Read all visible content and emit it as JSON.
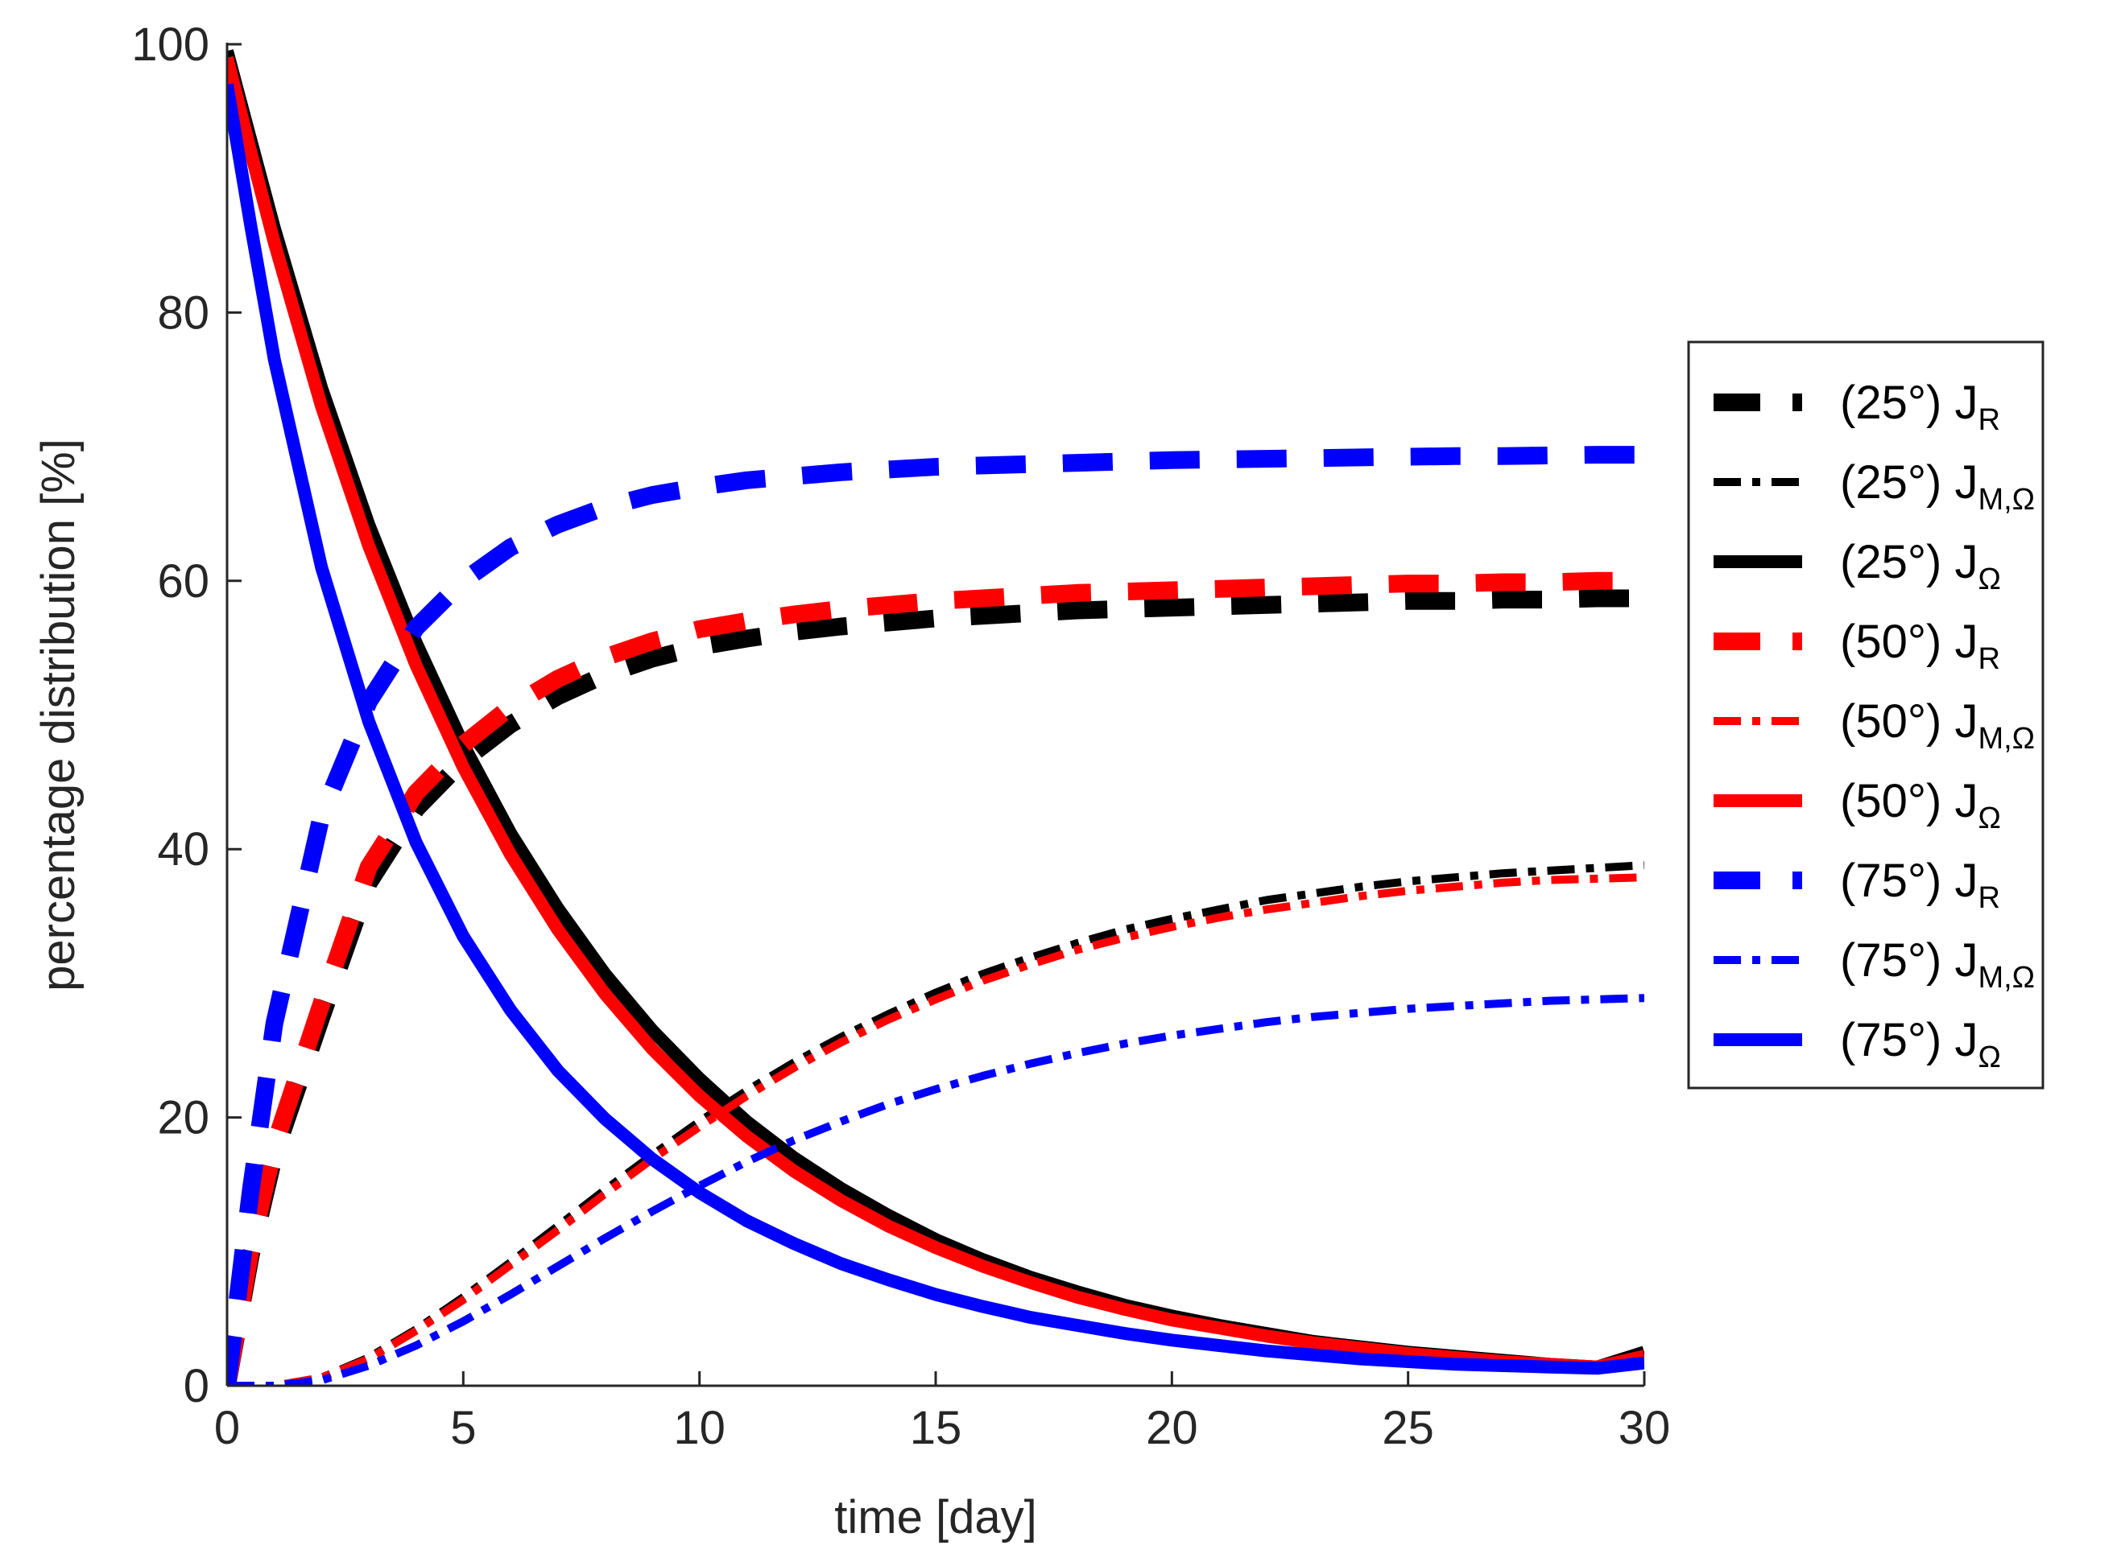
{
  "chart_data": {
    "type": "line",
    "title": "",
    "xlabel": "time [day]",
    "ylabel": "percentage distribution [%]",
    "xlim": [
      0,
      30
    ],
    "ylim": [
      0,
      100
    ],
    "xticks": [
      0,
      5,
      10,
      15,
      20,
      25,
      30
    ],
    "yticks": [
      0,
      20,
      40,
      60,
      80,
      100
    ],
    "grid": false,
    "legend_position": "outside-right",
    "colors": {
      "black": "#000000",
      "red": "#ff0000",
      "blue": "#0000ff"
    },
    "x": [
      0,
      0.5,
      1,
      2,
      3,
      4,
      5,
      6,
      7,
      8,
      9,
      10,
      11,
      12,
      13,
      14,
      15,
      16,
      17,
      18,
      19,
      20,
      21,
      22,
      23,
      24,
      25,
      26,
      27,
      28,
      29,
      30
    ],
    "series": [
      {
        "name": "(25°) J_R",
        "angle": "(25°)",
        "base": "J",
        "sub": "R",
        "color": "black",
        "style": "dashed",
        "values": [
          0,
          9.7,
          17.2,
          27.5,
          37.5,
          43.0,
          46.6,
          49.3,
          51.4,
          53.0,
          54.2,
          55.1,
          55.7,
          56.2,
          56.6,
          56.9,
          57.2,
          57.4,
          57.6,
          57.8,
          57.9,
          58.0,
          58.1,
          58.2,
          58.3,
          58.4,
          58.5,
          58.5,
          58.6,
          58.6,
          58.7,
          58.7
        ]
      },
      {
        "name": "(25°) J_M,Ω",
        "angle": "(25°)",
        "base": "J",
        "sub": "M,Ω",
        "color": "black",
        "style": "dashdot",
        "values": [
          0,
          0,
          0,
          0.6,
          2.1,
          4.2,
          6.6,
          9.2,
          11.9,
          14.6,
          17.2,
          19.7,
          22.0,
          24.1,
          26.0,
          27.7,
          29.3,
          30.7,
          31.9,
          33.0,
          34.0,
          34.8,
          35.5,
          36.2,
          36.7,
          37.2,
          37.6,
          37.9,
          38.2,
          38.4,
          38.6,
          38.8
        ]
      },
      {
        "name": "(25°) J_Ω",
        "angle": "(25°)",
        "base": "J",
        "sub": "Ω",
        "color": "black",
        "style": "solid",
        "values": [
          99.5,
          92.9,
          86.3,
          74.4,
          64.2,
          55.4,
          47.8,
          41.2,
          35.6,
          30.7,
          26.5,
          22.9,
          19.7,
          17.0,
          14.7,
          12.7,
          10.9,
          9.4,
          8.1,
          7.0,
          6.0,
          5.2,
          4.5,
          3.9,
          3.3,
          2.9,
          2.5,
          2.2,
          1.9,
          1.6,
          1.4,
          2.5
        ]
      },
      {
        "name": "(50°) J_R",
        "angle": "(50°)",
        "base": "J",
        "sub": "R",
        "color": "red",
        "style": "dashed",
        "values": [
          0,
          10.2,
          17.9,
          28.5,
          38.7,
          44.2,
          47.8,
          50.6,
          52.7,
          54.3,
          55.5,
          56.4,
          57.0,
          57.5,
          57.9,
          58.2,
          58.5,
          58.7,
          58.9,
          59.1,
          59.2,
          59.3,
          59.4,
          59.5,
          59.6,
          59.7,
          59.8,
          59.8,
          59.9,
          59.9,
          60.0,
          60.0
        ]
      },
      {
        "name": "(50°) J_M,Ω",
        "angle": "(50°)",
        "base": "J",
        "sub": "M,Ω",
        "color": "red",
        "style": "dashdot",
        "values": [
          0,
          0,
          0,
          0.6,
          2.0,
          4.1,
          6.4,
          9.0,
          11.6,
          14.3,
          16.9,
          19.3,
          21.6,
          23.7,
          25.6,
          27.3,
          28.8,
          30.2,
          31.4,
          32.5,
          33.4,
          34.2,
          34.9,
          35.5,
          36.0,
          36.5,
          36.9,
          37.2,
          37.5,
          37.7,
          37.8,
          37.9
        ]
      },
      {
        "name": "(50°) J_Ω",
        "angle": "(50°)",
        "base": "J",
        "sub": "Ω",
        "color": "red",
        "style": "solid",
        "values": [
          99.0,
          92.0,
          85.2,
          73.0,
          62.6,
          53.7,
          46.1,
          39.6,
          34.0,
          29.2,
          25.1,
          21.6,
          18.6,
          16.0,
          13.8,
          11.9,
          10.3,
          8.9,
          7.7,
          6.6,
          5.7,
          4.9,
          4.3,
          3.7,
          3.2,
          2.8,
          2.4,
          2.1,
          1.8,
          1.6,
          1.4,
          2.2
        ]
      },
      {
        "name": "(75°) J_R",
        "angle": "(75°)",
        "base": "J",
        "sub": "R",
        "color": "blue",
        "style": "dashed",
        "values": [
          0,
          14.5,
          27.0,
          42.5,
          51.0,
          56.5,
          60.0,
          62.5,
          64.2,
          65.5,
          66.4,
          67.0,
          67.5,
          67.8,
          68.1,
          68.3,
          68.5,
          68.6,
          68.7,
          68.8,
          68.9,
          69.0,
          69.05,
          69.1,
          69.15,
          69.2,
          69.25,
          69.3,
          69.3,
          69.35,
          69.4,
          69.4
        ]
      },
      {
        "name": "(75°) J_M,Ω",
        "angle": "(75°)",
        "base": "J",
        "sub": "M,Ω",
        "color": "blue",
        "style": "dashdot",
        "values": [
          0,
          0,
          0,
          0.4,
          1.5,
          3.0,
          4.8,
          6.8,
          8.9,
          11.0,
          13.0,
          14.9,
          16.7,
          18.3,
          19.7,
          21.0,
          22.1,
          23.1,
          24.0,
          24.8,
          25.5,
          26.1,
          26.6,
          27.1,
          27.5,
          27.8,
          28.1,
          28.3,
          28.5,
          28.7,
          28.8,
          28.9
        ]
      },
      {
        "name": "(75°) J_Ω",
        "angle": "(75°)",
        "base": "J",
        "sub": "Ω",
        "color": "blue",
        "style": "solid",
        "values": [
          97.0,
          86.5,
          76.5,
          61.0,
          49.5,
          40.5,
          33.5,
          28.0,
          23.5,
          19.9,
          16.9,
          14.4,
          12.3,
          10.6,
          9.1,
          7.9,
          6.8,
          5.9,
          5.1,
          4.5,
          3.9,
          3.4,
          3.0,
          2.6,
          2.3,
          2.0,
          1.8,
          1.6,
          1.5,
          1.4,
          1.3,
          1.7
        ]
      }
    ]
  }
}
